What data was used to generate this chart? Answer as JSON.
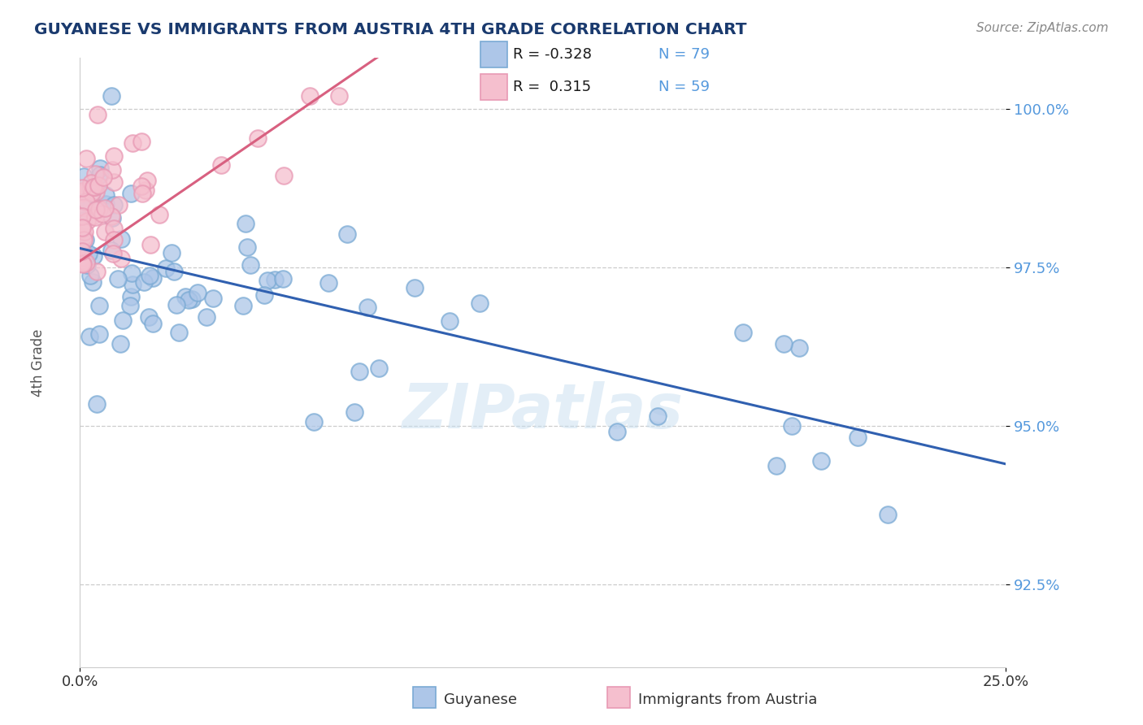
{
  "title": "GUYANESE VS IMMIGRANTS FROM AUSTRIA 4TH GRADE CORRELATION CHART",
  "source": "Source: ZipAtlas.com",
  "ylabel": "4th Grade",
  "xlim": [
    0.0,
    0.25
  ],
  "ylim": [
    0.912,
    1.008
  ],
  "yticks": [
    0.925,
    0.95,
    0.975,
    1.0
  ],
  "ytick_labels": [
    "92.5%",
    "95.0%",
    "97.5%",
    "100.0%"
  ],
  "blue_R": -0.328,
  "blue_N": 79,
  "pink_R": 0.315,
  "pink_N": 59,
  "blue_color": "#adc6e8",
  "blue_edge": "#7aaad4",
  "pink_color": "#f5bfce",
  "pink_edge": "#e899b4",
  "blue_line_color": "#3060b0",
  "pink_line_color": "#d86080",
  "watermark": "ZIPatlas",
  "legend_label_blue": "Guyanese",
  "legend_label_pink": "Immigrants from Austria",
  "title_color": "#1a3a6e",
  "source_color": "#888888",
  "ytick_color": "#5599dd",
  "ylabel_color": "#555555"
}
